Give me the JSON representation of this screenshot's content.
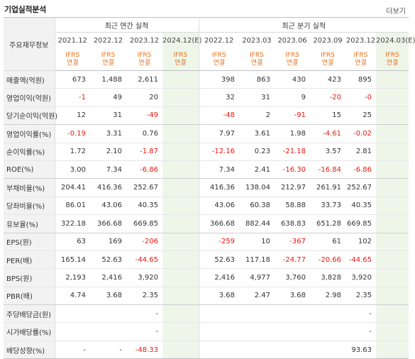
{
  "header": {
    "title": "기업실적분석",
    "more": "더보기"
  },
  "table": {
    "item_header": "주요재무정보",
    "group_annual": "최근 연간 실적",
    "group_quarter": "최근 분기 실적",
    "periods": [
      "2021.12",
      "2022.12",
      "2023.12",
      "2024.12(E)",
      "2022.12",
      "2023.03",
      "2023.06",
      "2023.09",
      "2023.12",
      "2024.03(E)"
    ],
    "ifrs_top": "IFRS",
    "ifrs_bottom": "연결",
    "rows": [
      {
        "label": "매출액(억원)",
        "values": [
          "673",
          "1,488",
          "2,611",
          "",
          "398",
          "863",
          "430",
          "423",
          "895",
          ""
        ]
      },
      {
        "label": "영업이익(억원)",
        "values": [
          "-1",
          "49",
          "20",
          "",
          "32",
          "31",
          "9",
          "-20",
          "-0",
          ""
        ]
      },
      {
        "label": "당기순이익(억원)",
        "values": [
          "12",
          "31",
          "-49",
          "",
          "-48",
          "2",
          "-91",
          "15",
          "25",
          ""
        ]
      },
      {
        "label": "영업이익률(%)",
        "values": [
          "-0.19",
          "3.31",
          "0.76",
          "",
          "7.97",
          "3.61",
          "1.98",
          "-4.61",
          "-0.02",
          ""
        ]
      },
      {
        "label": "순이익률(%)",
        "values": [
          "1.72",
          "2.10",
          "-1.87",
          "",
          "-12.16",
          "0.23",
          "-21.18",
          "3.57",
          "2.81",
          ""
        ]
      },
      {
        "label": "ROE(%)",
        "values": [
          "3.00",
          "7.34",
          "-6.86",
          "",
          "7.34",
          "2.41",
          "-16.30",
          "-16.84",
          "-6.86",
          ""
        ]
      },
      {
        "label": "부채비율(%)",
        "values": [
          "204.41",
          "416.36",
          "252.67",
          "",
          "416.36",
          "138.04",
          "212.97",
          "261.91",
          "252.67",
          ""
        ]
      },
      {
        "label": "당좌비율(%)",
        "values": [
          "86.01",
          "43.06",
          "40.35",
          "",
          "43.06",
          "60.38",
          "58.88",
          "33.73",
          "40.35",
          ""
        ]
      },
      {
        "label": "유보율(%)",
        "values": [
          "322.18",
          "366.68",
          "669.85",
          "",
          "366.68",
          "882.44",
          "638.83",
          "651.28",
          "669.85",
          ""
        ]
      },
      {
        "label": "EPS(원)",
        "values": [
          "63",
          "169",
          "-206",
          "",
          "-259",
          "10",
          "-367",
          "61",
          "102",
          ""
        ]
      },
      {
        "label": "PER(배)",
        "values": [
          "165.14",
          "52.63",
          "-44.65",
          "",
          "52.63",
          "117.18",
          "-24.77",
          "-20.66",
          "-44.65",
          ""
        ]
      },
      {
        "label": "BPS(원)",
        "values": [
          "2,193",
          "2,416",
          "3,920",
          "",
          "2,416",
          "4,977",
          "3,760",
          "3,828",
          "3,920",
          ""
        ]
      },
      {
        "label": "PBR(배)",
        "values": [
          "4.74",
          "3.68",
          "2.35",
          "",
          "3.68",
          "2.47",
          "3.68",
          "2.98",
          "2.35",
          ""
        ]
      },
      {
        "label": "주당배당금(원)",
        "values": [
          "",
          "",
          "-",
          "",
          "",
          "",
          "",
          "",
          "-",
          ""
        ]
      },
      {
        "label": "시가배당률(%)",
        "values": [
          "",
          "",
          "-",
          "",
          "",
          "",
          "",
          "",
          "-",
          ""
        ]
      },
      {
        "label": "배당성향(%)",
        "values": [
          "-",
          "-",
          "-48.33",
          "",
          "",
          "",
          "",
          "",
          "93.63",
          ""
        ]
      }
    ]
  },
  "colors": {
    "negative": "#e8170f",
    "ifrs": "#e8711a",
    "estimate_bg": "#eef6ea",
    "label_bg": "#f2f2f2"
  }
}
